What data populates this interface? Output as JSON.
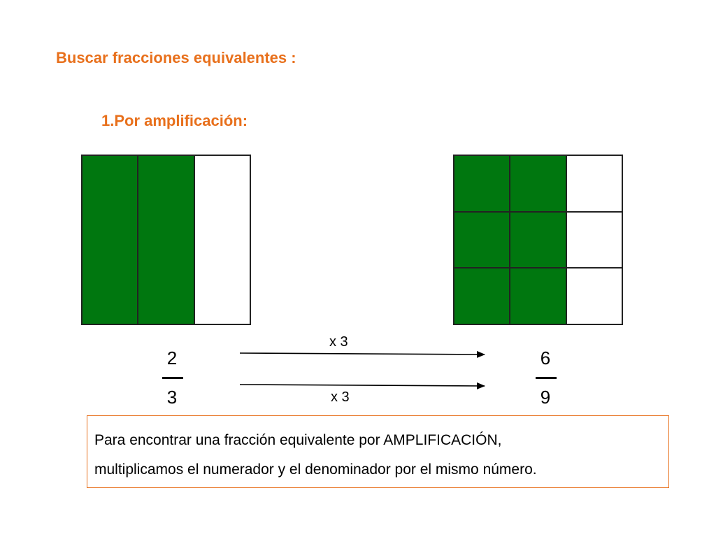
{
  "title": "Buscar fracciones equivalentes :",
  "subtitle": "1.Por amplificación:",
  "left_model": {
    "rows": 1,
    "cols": 3,
    "shaded": [
      true,
      true,
      false
    ]
  },
  "right_model": {
    "rows": 3,
    "cols": 3,
    "shaded": [
      true,
      true,
      false,
      true,
      true,
      false,
      true,
      true,
      false
    ]
  },
  "fraction_left": {
    "numerator": "2",
    "denominator": "3"
  },
  "fraction_right": {
    "numerator": "6",
    "denominator": "9"
  },
  "arrow_top_label": "x 3",
  "arrow_bottom_label": "x 3",
  "colors": {
    "accent": "#e8701c",
    "fill": "#00770f"
  },
  "explanation": {
    "line1": "Para encontrar una fracción equivalente por AMPLIFICACIÓN,",
    "line2": "multiplicamos el numerador y el denominador por el mismo número."
  }
}
